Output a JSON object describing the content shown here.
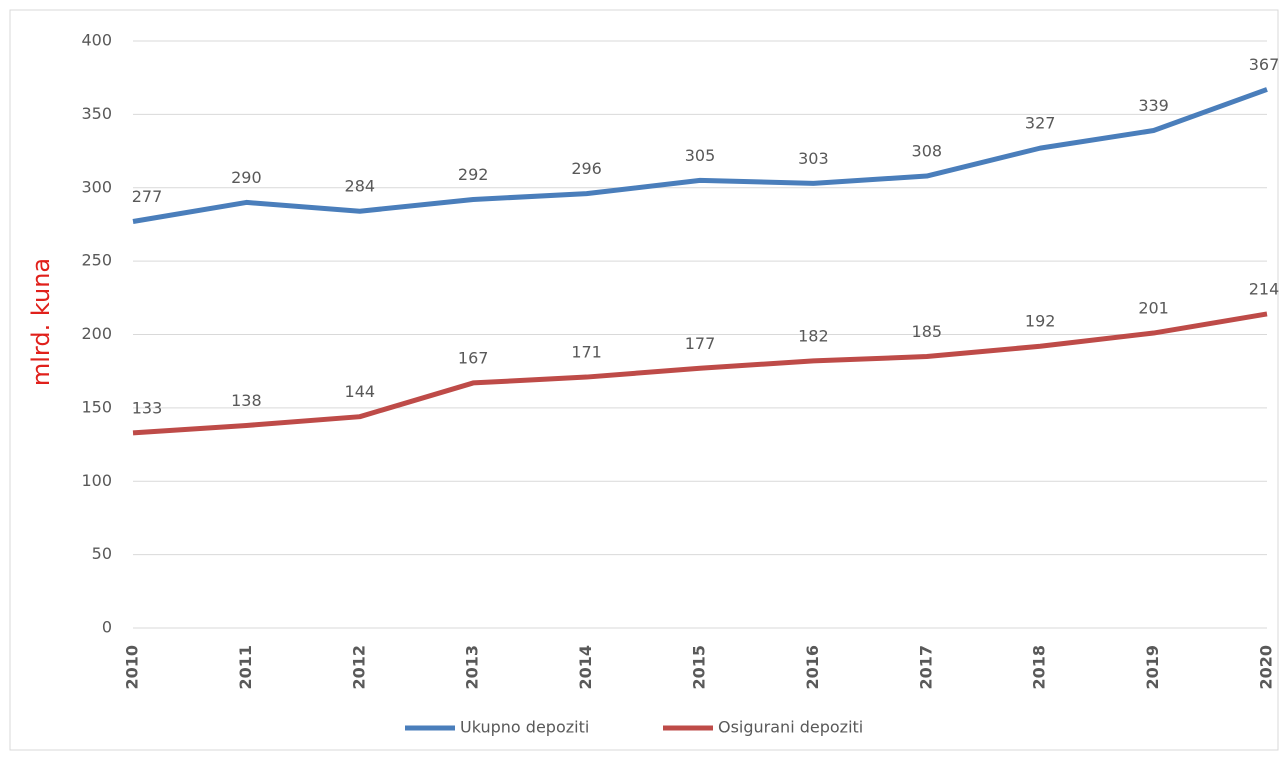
{
  "chart_data": {
    "type": "line",
    "y_label": "mlrd. kuna",
    "categories": [
      "2010",
      "2011",
      "2012",
      "2013",
      "2014",
      "2015",
      "2016",
      "2017",
      "2018",
      "2019",
      "2020"
    ],
    "series": [
      {
        "name": "Ukupno depoziti",
        "color": "#4a7ebb",
        "values": [
          277,
          290,
          284,
          292,
          296,
          305,
          303,
          308,
          327,
          339,
          367
        ]
      },
      {
        "name": "Osigurani depoziti",
        "color": "#be4b48",
        "values": [
          133,
          138,
          144,
          167,
          171,
          177,
          182,
          185,
          192,
          201,
          214
        ]
      }
    ],
    "ylim": [
      0,
      400
    ],
    "yticks": [
      0,
      50,
      100,
      150,
      200,
      250,
      300,
      350,
      400
    ],
    "grid": true,
    "legend": "bottom"
  }
}
